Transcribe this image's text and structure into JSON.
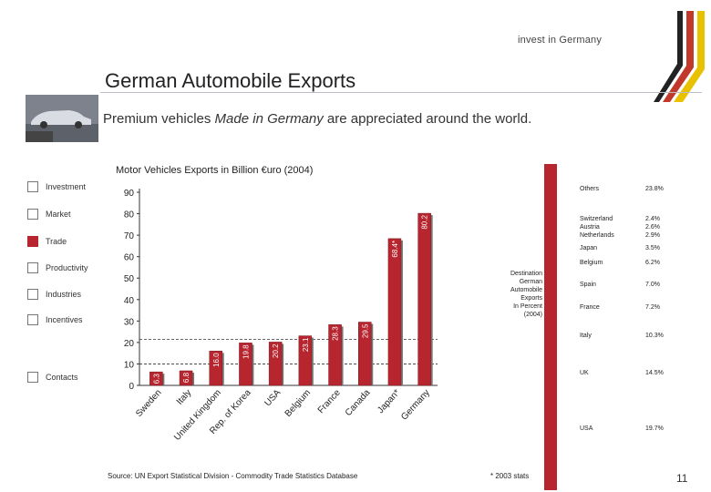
{
  "header": {
    "logo_text": "invest in Germany",
    "title": "German Automobile Exports",
    "subtitle_prefix": "Premium vehicles ",
    "subtitle_emphasis": "Made in Germany",
    "subtitle_suffix": " are appreciated around the world.",
    "thumbnail_caption": "",
    "flag_colors": [
      "#222222",
      "#c0392b",
      "#e8c200"
    ]
  },
  "nav": {
    "items": [
      {
        "label": "Investment",
        "active": false
      },
      {
        "label": "Market",
        "active": false
      },
      {
        "label": "Trade",
        "active": true
      },
      {
        "label": "Productivity",
        "active": false
      },
      {
        "label": "Industries",
        "active": false
      },
      {
        "label": "Incentives",
        "active": false
      },
      {
        "label": "Contacts",
        "active": false
      }
    ]
  },
  "chart_data": {
    "type": "bar",
    "title": "Motor Vehicles Exports in Billion €uro (2004)",
    "categories": [
      "Sweden",
      "Italy",
      "United Kingdom",
      "Rep. of Korea",
      "USA",
      "Belgium",
      "France",
      "Canada",
      "Japan*",
      "Germany"
    ],
    "values": [
      6.3,
      6.8,
      16.0,
      19.8,
      20.2,
      23.1,
      28.3,
      29.5,
      68.4,
      80.2
    ],
    "value_labels": [
      "6.3",
      "6.8",
      "16.0",
      "19.8",
      "20.2",
      "23.1",
      "28.3",
      "29.5",
      "68.4*",
      "80.2"
    ],
    "ylim": [
      0,
      90
    ],
    "yticks": [
      "0",
      "10",
      "20",
      "30",
      "40",
      "50",
      "60",
      "70",
      "80",
      "90"
    ],
    "xlabel": "",
    "ylabel": "",
    "bar_color": "#b7262f"
  },
  "share_legend": {
    "caption_lines": [
      "Destination",
      "German",
      "Automobile",
      "Exports",
      "In Percent",
      "(2004)"
    ],
    "items": [
      {
        "label": "Others",
        "value": "23.8%"
      },
      {
        "label": "Switzerland",
        "value": "2.4%"
      },
      {
        "label": "Austria",
        "value": "2.6%"
      },
      {
        "label": "Netherlands",
        "value": "2.9%"
      },
      {
        "label": "Japan",
        "value": "3.5%"
      },
      {
        "label": "Belgium",
        "value": "6.2%"
      },
      {
        "label": "Spain",
        "value": "7.0%"
      },
      {
        "label": "France",
        "value": "7.2%"
      },
      {
        "label": "Italy",
        "value": "10.3%"
      },
      {
        "label": "UK",
        "value": "14.5%"
      },
      {
        "label": "USA",
        "value": "19.7%"
      }
    ]
  },
  "footer": {
    "source": "Source: UN Export Statistical Division - Commodity Trade Statistics Database",
    "footnote": "* 2003 stats",
    "page_number": "11"
  }
}
